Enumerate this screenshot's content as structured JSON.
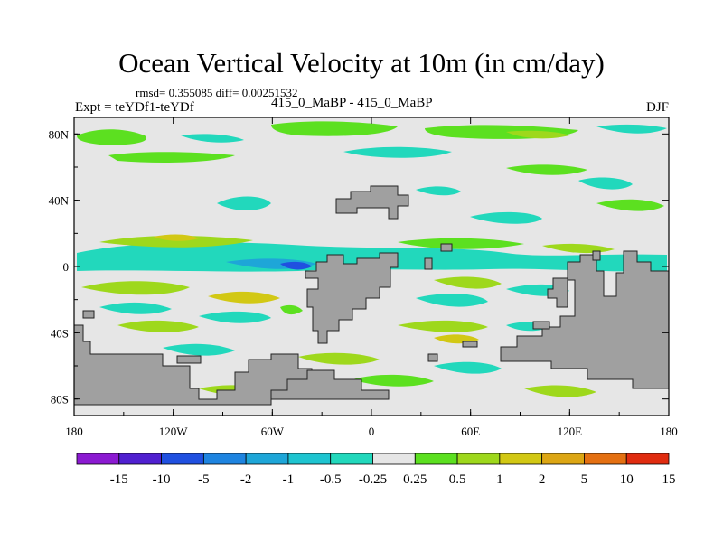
{
  "title": "Ocean Vertical Velocity at 10m (in cm/day)",
  "stats": "rmsd= 0.355085 diff= 0.00251532",
  "left_label": "Expt = teYDf1-teYDf",
  "center_label": "415_0_MaBP - 415_0_MaBP",
  "right_label": "DJF",
  "lat_ticks": [
    "80N",
    "40N",
    "0",
    "40S",
    "80S"
  ],
  "lat_values": [
    80,
    40,
    0,
    -40,
    -80
  ],
  "lon_ticks": [
    "180",
    "120W",
    "60W",
    "0",
    "60E",
    "120E",
    "180"
  ],
  "lon_values": [
    -180,
    -120,
    -60,
    0,
    60,
    120,
    180
  ],
  "colorbar": {
    "labels": [
      "-15",
      "-10",
      "-5",
      "-2",
      "-1",
      "-0.5",
      "-0.25",
      "0.25",
      "0.5",
      "1",
      "2",
      "5",
      "10",
      "15"
    ],
    "colors": [
      "#8b1ad1",
      "#5020d0",
      "#2050e0",
      "#1e84e0",
      "#1ea6d8",
      "#1ec4d0",
      "#22d8bc",
      "#e6e6e6",
      "#5ce020",
      "#9ed81c",
      "#d2c814",
      "#dca614",
      "#e47012",
      "#e02c10"
    ]
  },
  "map": {
    "lat_range": [
      -90,
      90
    ],
    "lon_range": [
      -180,
      180
    ],
    "land_color": "#a0a0a0",
    "ocean_neutral_color": "#e6e6e6"
  }
}
